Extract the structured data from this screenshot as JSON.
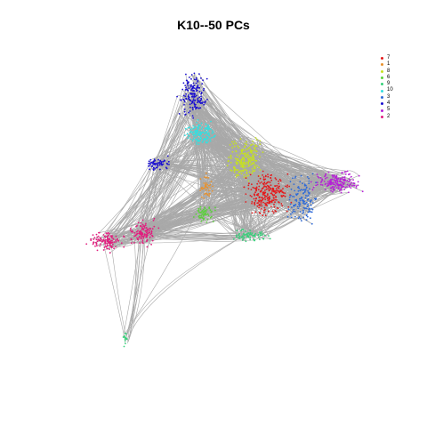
{
  "title": "K10--50 PCs",
  "legend": [
    {
      "label": "7",
      "color": "#e41a1c"
    },
    {
      "label": "1",
      "color": "#e8912d"
    },
    {
      "label": "8",
      "color": "#c7e21f"
    },
    {
      "label": "6",
      "color": "#5ad13a"
    },
    {
      "label": "9",
      "color": "#36d17a"
    },
    {
      "label": "10",
      "color": "#33e0e0"
    },
    {
      "label": "3",
      "color": "#2f6bd8"
    },
    {
      "label": "4",
      "color": "#1a0fd0"
    },
    {
      "label": "5",
      "color": "#b61ed6"
    },
    {
      "label": "2",
      "color": "#e21d7e"
    }
  ],
  "edge_color": "#a9a9a9",
  "clusters": [
    {
      "label": "7",
      "color": "#e41a1c"
    },
    {
      "label": "1",
      "color": "#e8912d"
    },
    {
      "label": "8",
      "color": "#c7e21f"
    },
    {
      "label": "6",
      "color": "#5ad13a"
    },
    {
      "label": "9",
      "color": "#36d17a"
    },
    {
      "label": "10",
      "color": "#33e0e0"
    },
    {
      "label": "3",
      "color": "#2f6bd8"
    },
    {
      "label": "4",
      "color": "#1a0fd0"
    },
    {
      "label": "5",
      "color": "#b61ed6"
    },
    {
      "label": "2",
      "color": "#e21d7e"
    }
  ]
}
